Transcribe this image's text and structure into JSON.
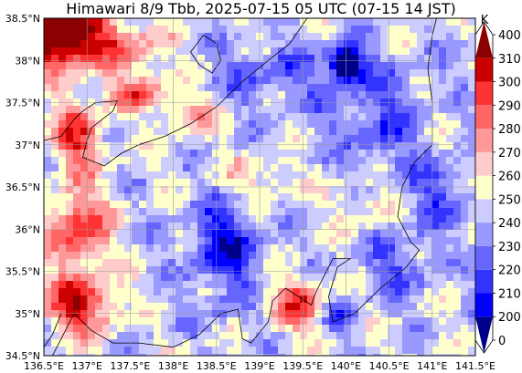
{
  "title": "Himawari 8/9 Tbb, 2025-07-15 05 UTC (07-15 14 JST)",
  "map": {
    "lon_range": [
      136.5,
      141.5
    ],
    "lat_range": [
      34.5,
      38.5
    ],
    "x_ticks": [
      "136.5°E",
      "137°E",
      "137.5°E",
      "138°E",
      "138.5°E",
      "139°E",
      "139.5°E",
      "140°E",
      "140.5°E",
      "141°E",
      "141.5°E"
    ],
    "y_ticks": [
      "38.5°N",
      "38°N",
      "37.5°N",
      "37°N",
      "36.5°N",
      "36°N",
      "35.5°N",
      "35°N",
      "34.5°N"
    ],
    "grid": true
  },
  "colorbar": {
    "unit": "K",
    "levels": [
      "0",
      "200",
      "210",
      "220",
      "230",
      "240",
      "250",
      "260",
      "270",
      "280",
      "290",
      "300",
      "310",
      "400"
    ],
    "colors": [
      "#00008b",
      "#0000ff",
      "#3333ff",
      "#6666ff",
      "#9999ff",
      "#ccccff",
      "#ffffcc",
      "#ffcccc",
      "#ff9999",
      "#ff6666",
      "#ff3333",
      "#cc0000",
      "#8b0000"
    ]
  }
}
